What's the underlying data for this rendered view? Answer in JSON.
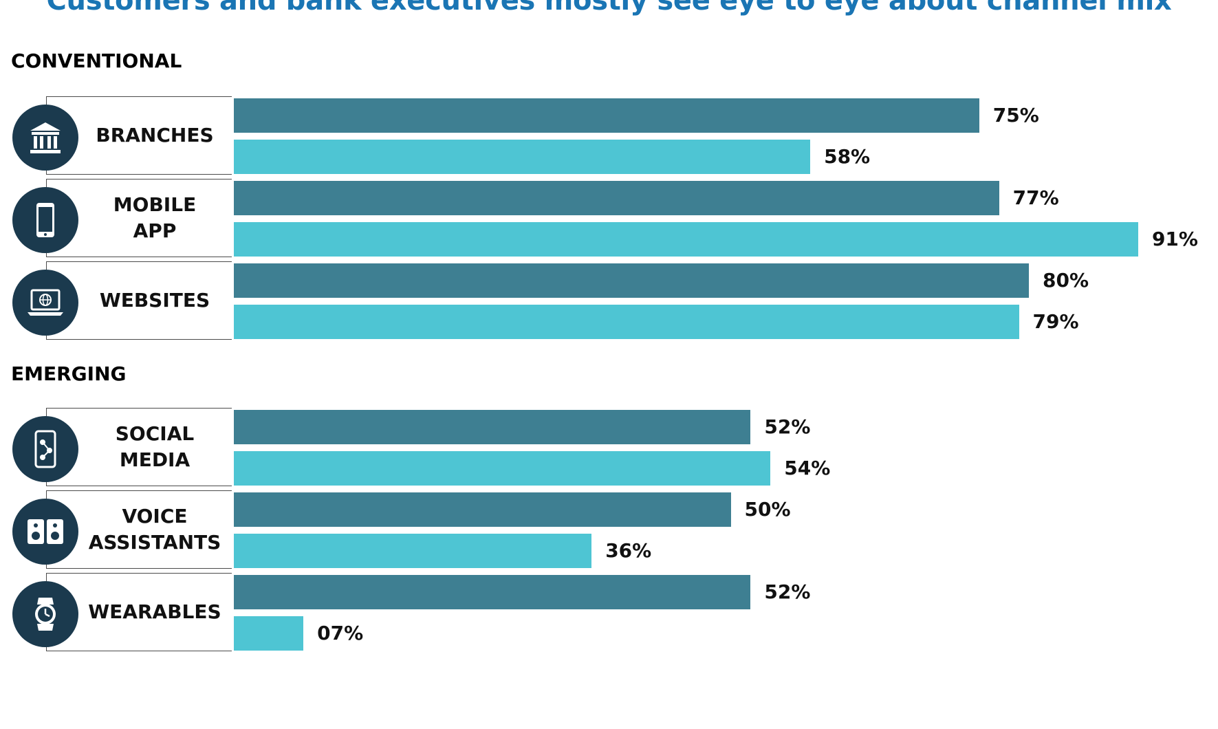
{
  "title": "Customers and bank executives mostly see eye to eye about channel mix",
  "sections": [
    "CONVENTIONAL",
    "EMERGING"
  ],
  "colors": {
    "series_1": "#3e7f92",
    "series_2": "#4ec5d3",
    "icon_bg": "#1b3a4e",
    "title": "#1a75b4"
  },
  "chart_data": {
    "type": "bar",
    "orientation": "horizontal",
    "categories": [
      "BRANCHES",
      "MOBILE APP",
      "WEBSITES",
      "SOCIAL MEDIA",
      "VOICE ASSISTANTS",
      "WEARABLES"
    ],
    "groups": [
      {
        "section": "CONVENTIONAL",
        "categories": [
          "BRANCHES",
          "MOBILE APP",
          "WEBSITES"
        ]
      },
      {
        "section": "EMERGING",
        "categories": [
          "SOCIAL MEDIA",
          "VOICE ASSISTANTS",
          "WEARABLES"
        ]
      }
    ],
    "series": [
      {
        "values": [
          75,
          77,
          80,
          52,
          50,
          52
        ],
        "labels": [
          "75%",
          "77%",
          "80%",
          "52%",
          "50%",
          "52%"
        ]
      },
      {
        "values": [
          58,
          91,
          79,
          54,
          36,
          7
        ],
        "labels": [
          "58%",
          "91%",
          "79%",
          "54%",
          "36%",
          "07%"
        ]
      }
    ],
    "icons": [
      "bank-icon",
      "smartphone-icon",
      "laptop-globe-icon",
      "social-phone-icon",
      "speaker-icon",
      "smartwatch-icon"
    ],
    "xlim": [
      0,
      100
    ],
    "grid": false,
    "legend": "none"
  }
}
